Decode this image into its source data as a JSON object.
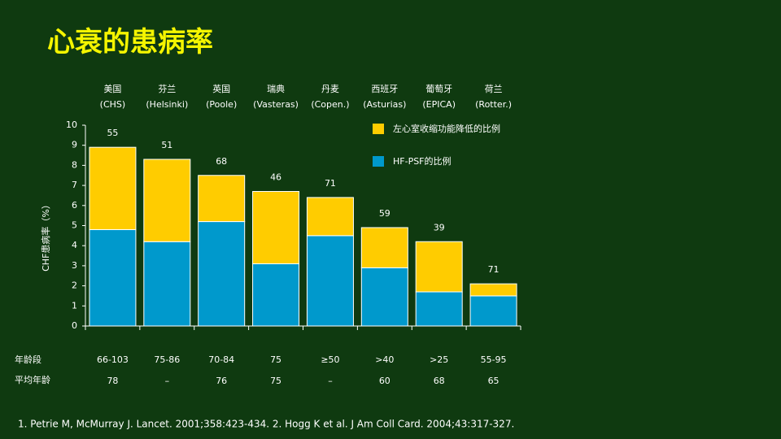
{
  "chart_data": {
    "type": "stacked_bar",
    "title": "心衰的患病率",
    "categories": [
      "美国",
      "芬兰",
      "英国",
      "瑞典",
      "丹麦",
      "西班牙",
      "葡萄牙",
      "荷兰"
    ],
    "studies": [
      "(CHS)",
      "(Helsinki)",
      "(Poole)",
      "(Vasteras)",
      "(Copen.)",
      "(Asturias)",
      "(EPICA)",
      "(Rotter.)"
    ],
    "series": [
      {
        "name": "HF-PSF的比例",
        "color": "#0099cc",
        "values": [
          4.8,
          4.2,
          5.2,
          3.1,
          4.5,
          2.9,
          1.7,
          1.5
        ]
      },
      {
        "name": "左心室收缩功能降低的比例",
        "color": "#ffcc00",
        "values": [
          4.1,
          4.1,
          2.3,
          3.6,
          1.9,
          2.0,
          2.5,
          0.6
        ]
      }
    ],
    "annotations": [
      55,
      51,
      68,
      46,
      71,
      59,
      39,
      71
    ],
    "ylabel": "CHF患病率（%）",
    "ylim": [
      0,
      10
    ],
    "yticks": [
      0,
      1,
      2,
      3,
      4,
      5,
      6,
      7,
      8,
      9,
      10
    ],
    "grid": false,
    "age_label": "年龄段",
    "age_ranges": [
      "66-103",
      "75-86",
      "70-84",
      "75",
      "≥50",
      ">40",
      ">25",
      "55-95"
    ],
    "mean_age_label": "平均年龄",
    "mean_ages": [
      "78",
      "–",
      "76",
      "75",
      "–",
      "60",
      "68",
      "65"
    ]
  },
  "footnote": "1. Petrie M, McMurray J. Lancet. 2001;358:423-434.  2. Hogg K et al. J Am Coll Card. 2004;43:317-327."
}
